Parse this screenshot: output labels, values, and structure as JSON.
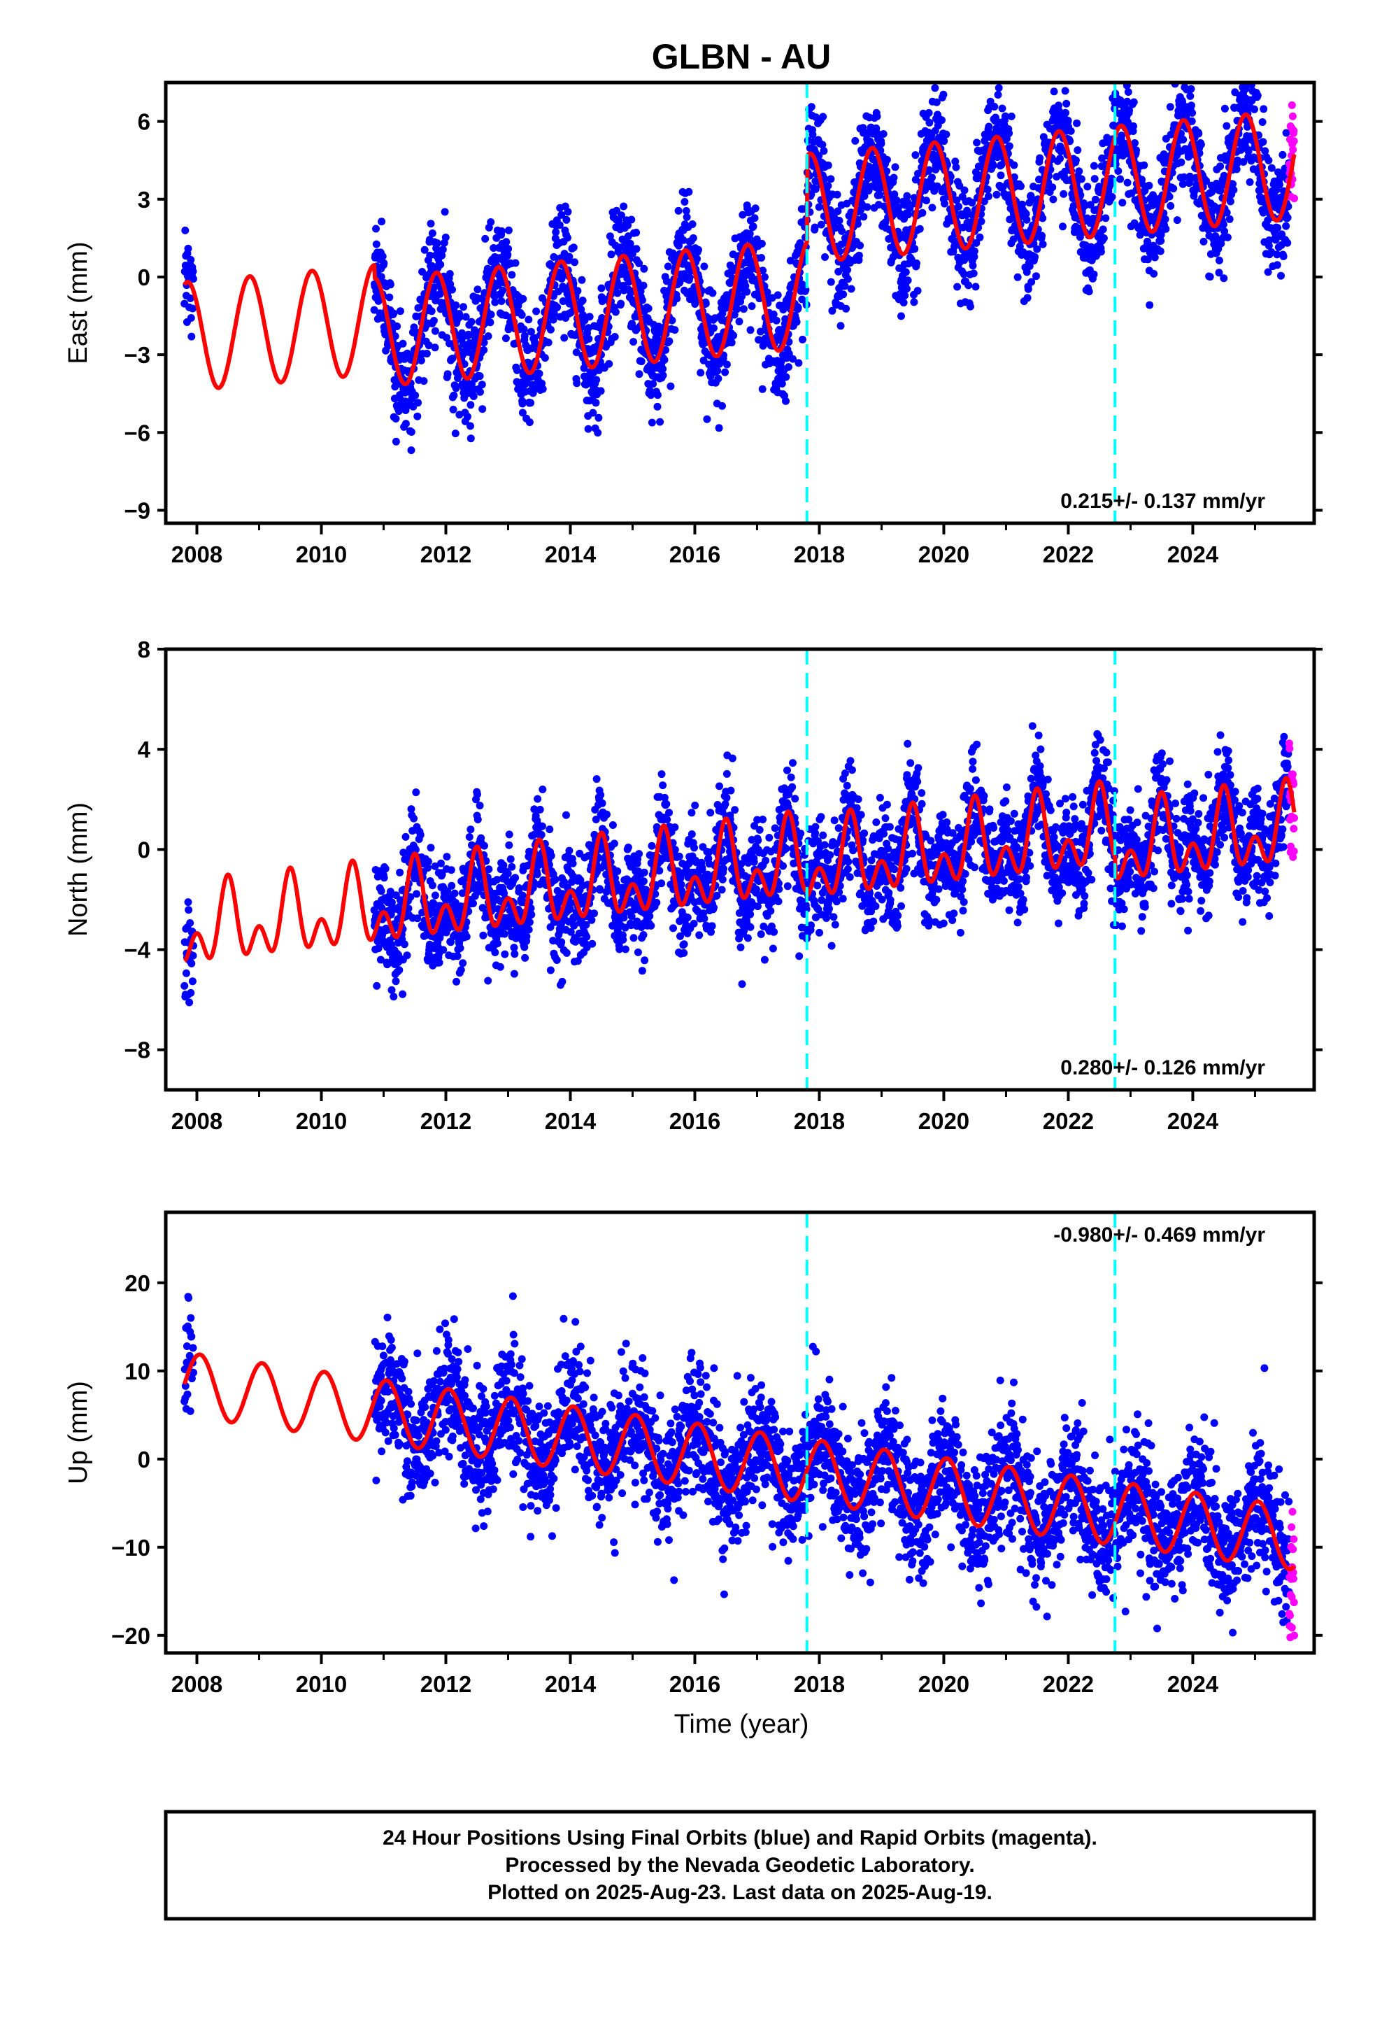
{
  "figure": {
    "title": "GLBN - AU",
    "xlabel": "Time (year)",
    "footer": [
      "24 Hour Positions Using Final Orbits (blue) and Rapid Orbits (magenta).",
      "Processed by the Nevada Geodetic Laboratory.",
      "Plotted on 2025-Aug-23. Last data on 2025-Aug-19."
    ],
    "colors": {
      "final_orbits": "#0000ff",
      "rapid_orbits": "#ff00ff",
      "model_fit": "#ff0000",
      "equipment_change": "#00ffff",
      "frame": "#000000"
    }
  },
  "chart_data": [
    {
      "type": "scatter",
      "component": "east",
      "ylabel": "East (mm)",
      "rate_label": "0.215+/- 0.137 mm/yr",
      "rate_position": "bottom-right",
      "xlim": [
        2007.5,
        2025.95
      ],
      "ylim": [
        -9.5,
        7.5
      ],
      "xticks": [
        2008,
        2010,
        2012,
        2014,
        2016,
        2018,
        2020,
        2022,
        2024
      ],
      "xtick_labels": [
        "2008",
        "2010",
        "2012",
        "2014",
        "2016",
        "2018",
        "2020",
        "2022",
        "2024"
      ],
      "yticks": [
        6,
        3,
        0,
        -3,
        -6,
        -9
      ],
      "ytick_labels": [
        "6",
        "3",
        "0",
        "−3",
        "−6",
        "−9"
      ],
      "grid": false,
      "offsets": [
        2017.8,
        2022.75
      ],
      "data_span": [
        2007.8,
        2025.63
      ],
      "early_span": [
        2007.8,
        2007.95
      ],
      "main_start": 2010.85,
      "rapid_span": [
        2025.55,
        2025.63
      ],
      "model": {
        "start": 2007.8,
        "end": 2025.63,
        "intercept": -2.3,
        "slope": 0.215,
        "annual_amp": 2.1,
        "annual_peak": 0.85,
        "semiannual_amp": 0.0,
        "semiannual_peak": 0.0,
        "steps": [
          {
            "t": 2010.85,
            "dy": -0.5
          },
          {
            "t": 2017.8,
            "dy": 3.3
          }
        ]
      },
      "noise_sd": 1.1,
      "series": [
        {
          "name": "Final Orbits",
          "color": "#0000ff"
        },
        {
          "name": "Rapid Orbits",
          "color": "#ff00ff"
        },
        {
          "name": "Model",
          "color": "#ff0000"
        }
      ]
    },
    {
      "type": "scatter",
      "component": "north",
      "ylabel": "North (mm)",
      "rate_label": "0.280+/- 0.126 mm/yr",
      "rate_position": "bottom-right",
      "xlim": [
        2007.5,
        2025.95
      ],
      "ylim": [
        -9.6,
        8.0
      ],
      "xticks": [
        2008,
        2010,
        2012,
        2014,
        2016,
        2018,
        2020,
        2022,
        2024
      ],
      "xtick_labels": [
        "2008",
        "2010",
        "2012",
        "2014",
        "2016",
        "2018",
        "2020",
        "2022",
        "2024"
      ],
      "yticks": [
        8,
        4,
        0,
        -4,
        -8
      ],
      "ytick_labels": [
        "8",
        "4",
        "0",
        "−4",
        "−8"
      ],
      "grid": false,
      "offsets": [
        2017.8,
        2022.75
      ],
      "data_span": [
        2007.8,
        2025.63
      ],
      "early_span": [
        2007.8,
        2007.95
      ],
      "main_start": 2010.85,
      "rapid_span": [
        2025.55,
        2025.63
      ],
      "model": {
        "start": 2007.8,
        "end": 2025.63,
        "intercept": -3.3,
        "slope": 0.28,
        "annual_amp": 1.1,
        "annual_peak": 0.5,
        "semiannual_amp": 1.0,
        "semiannual_peak": 0.5,
        "steps": [
          {
            "t": 2017.8,
            "dy": -0.2
          },
          {
            "t": 2022.75,
            "dy": -0.7
          }
        ]
      },
      "noise_sd": 1.05,
      "series": [
        {
          "name": "Final Orbits",
          "color": "#0000ff"
        },
        {
          "name": "Rapid Orbits",
          "color": "#ff00ff"
        },
        {
          "name": "Model",
          "color": "#ff0000"
        }
      ]
    },
    {
      "type": "scatter",
      "component": "up",
      "ylabel": "Up (mm)",
      "rate_label": "-0.980+/- 0.469 mm/yr",
      "rate_position": "top-right",
      "xlim": [
        2007.5,
        2025.95
      ],
      "ylim": [
        -22,
        28
      ],
      "xticks": [
        2008,
        2010,
        2012,
        2014,
        2016,
        2018,
        2020,
        2022,
        2024
      ],
      "xtick_labels": [
        "2008",
        "2010",
        "2012",
        "2014",
        "2016",
        "2018",
        "2020",
        "2022",
        "2024"
      ],
      "yticks": [
        20,
        10,
        0,
        -10,
        -20
      ],
      "ytick_labels": [
        "20",
        "10",
        "0",
        "−10",
        "−20"
      ],
      "grid": false,
      "offsets": [
        2017.8,
        2022.75
      ],
      "data_span": [
        2007.8,
        2025.63
      ],
      "early_span": [
        2007.8,
        2007.95
      ],
      "main_start": 2010.85,
      "rapid_span": [
        2025.55,
        2025.63
      ],
      "model": {
        "start": 2007.8,
        "end": 2025.63,
        "intercept": 8.5,
        "slope": -0.98,
        "annual_amp": 3.6,
        "annual_peak": 0.05,
        "semiannual_amp": 0.0,
        "semiannual_peak": 0.0,
        "steps": []
      },
      "noise_sd": 3.6,
      "series": [
        {
          "name": "Final Orbits",
          "color": "#0000ff"
        },
        {
          "name": "Rapid Orbits",
          "color": "#ff00ff"
        },
        {
          "name": "Model",
          "color": "#ff0000"
        }
      ]
    }
  ]
}
